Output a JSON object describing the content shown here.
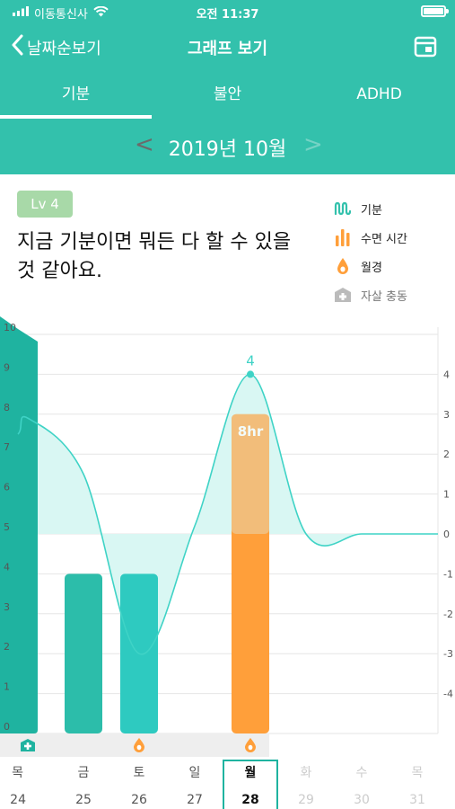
{
  "status": {
    "carrier": "이동통신사",
    "time": "오전 11:37"
  },
  "nav": {
    "back_label": "날짜순보기",
    "title": "그래프 보기"
  },
  "tabs": [
    {
      "label": "기분",
      "active": true
    },
    {
      "label": "불안",
      "active": false
    },
    {
      "label": "ADHD",
      "active": false
    }
  ],
  "month": {
    "label": "2019년 10월",
    "prev": "<",
    "next": ">"
  },
  "level": {
    "badge": "Lv 4",
    "text": "지금 기분이면 뭐든 다 할 수 있을 것 같아요."
  },
  "legend": [
    {
      "label": "기분",
      "icon": "mood-wave-icon",
      "color": "#33c1ac"
    },
    {
      "label": "수면 시간",
      "icon": "sleep-bars-icon",
      "color": "#ff9f3a"
    },
    {
      "label": "월경",
      "icon": "menstruation-drop-icon",
      "color": "#ff9f3a"
    },
    {
      "label": "자살 충동",
      "icon": "suicidal-impulse-icon",
      "color": "#bbbbbb"
    }
  ],
  "chart_data": {
    "type": "bar",
    "left_axis": {
      "min": 0,
      "max": 10,
      "ticks": [
        "0",
        "1",
        "2",
        "3",
        "4",
        "5",
        "6",
        "7",
        "8",
        "9",
        "10"
      ]
    },
    "right_axis": {
      "min": -5,
      "max": 5,
      "ticks": [
        "-4",
        "-3",
        "-2",
        "-1",
        "0",
        "1",
        "2",
        "3",
        "4"
      ]
    },
    "days": [
      {
        "weekday": "목",
        "date": "24",
        "sleep": 10,
        "sleep_label": "",
        "sleep_color": "#1fb3a0",
        "mood": 2.9,
        "period": false,
        "suicidal": true,
        "future": false,
        "selected": false
      },
      {
        "weekday": "금",
        "date": "25",
        "sleep": 4,
        "sleep_label": "",
        "sleep_color": "#2cbdaa",
        "mood": 1.5,
        "period": false,
        "suicidal": false,
        "future": false,
        "selected": false
      },
      {
        "weekday": "토",
        "date": "26",
        "sleep": 4,
        "sleep_label": "",
        "sleep_color": "#2ecac0",
        "mood": -3,
        "period": true,
        "suicidal": false,
        "future": false,
        "selected": false
      },
      {
        "weekday": "일",
        "date": "27",
        "sleep": 0,
        "sleep_label": "",
        "sleep_color": "#2cbdaa",
        "mood": 0.2,
        "period": false,
        "suicidal": false,
        "future": false,
        "selected": false
      },
      {
        "weekday": "월",
        "date": "28",
        "sleep": 8,
        "sleep_label": "8hr",
        "sleep_color": "#ff9f3a",
        "mood": 4,
        "mood_label": "4",
        "period": true,
        "suicidal": false,
        "future": false,
        "selected": true
      },
      {
        "weekday": "화",
        "date": "29",
        "sleep": 0,
        "sleep_label": "",
        "sleep_color": "#2cbdaa",
        "mood": 0,
        "period": false,
        "suicidal": false,
        "future": true,
        "selected": false
      },
      {
        "weekday": "수",
        "date": "30",
        "sleep": 0,
        "sleep_label": "",
        "sleep_color": "#2cbdaa",
        "mood": 0,
        "period": false,
        "suicidal": false,
        "future": true,
        "selected": false
      },
      {
        "weekday": "목",
        "date": "31",
        "sleep": 0,
        "sleep_label": "",
        "sleep_color": "#2cbdaa",
        "mood": 0,
        "period": false,
        "suicidal": false,
        "future": true,
        "selected": false
      }
    ],
    "colors": {
      "mood_line": "#3fd3c6",
      "mood_fill": "#d9f7f3",
      "grid": "#e6e6e6",
      "axis_text": "#555555",
      "future_text": "#cccccc",
      "selected_border": "#1fb3a0"
    }
  }
}
